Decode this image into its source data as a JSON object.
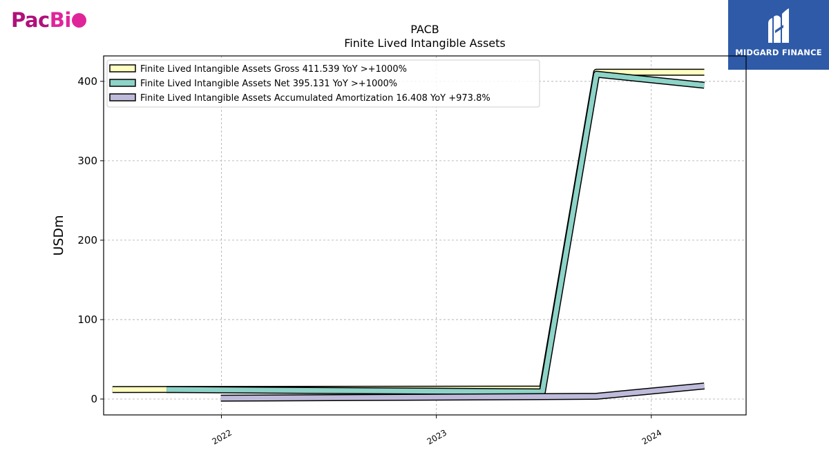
{
  "branding": {
    "left_logo_text_a": "Pac",
    "left_logo_text_b": "Bi",
    "right_logo_text": "MIDGARD FINANCE",
    "colors": {
      "pacbio_dark": "#b0117a",
      "pacbio_light": "#e0249a",
      "midgard_bg": "#2e5aa8"
    }
  },
  "chart_data": {
    "type": "line",
    "title": "PACB",
    "subtitle": "Finite Lived Intangible Assets",
    "ylabel": "USDm",
    "xlabel": "",
    "x_range": [
      "2021-06-15",
      "2024-06-10"
    ],
    "ylim": [
      -20,
      432
    ],
    "yticks": [
      0,
      100,
      200,
      300,
      400
    ],
    "xticks": [
      "2022",
      "2023",
      "2024"
    ],
    "grid": true,
    "legend_placement": "top-left",
    "series": [
      {
        "name": "Finite Lived Intangible Assets Gross  411.539 YoY >+1000%",
        "color": "#ffffbf",
        "points": [
          {
            "x": "2021-06-30",
            "y": 12.0
          },
          {
            "x": "2023-06-30",
            "y": 12.5
          },
          {
            "x": "2023-09-30",
            "y": 411.5
          },
          {
            "x": "2024-03-31",
            "y": 411.5
          }
        ]
      },
      {
        "name": "Finite Lived Intangible Assets Net  395.131 YoY >+1000%",
        "color": "#8dd3c7",
        "points": [
          {
            "x": "2021-09-30",
            "y": 12.0
          },
          {
            "x": "2023-06-30",
            "y": 9.0
          },
          {
            "x": "2023-09-30",
            "y": 409.0
          },
          {
            "x": "2024-03-31",
            "y": 395.1
          }
        ]
      },
      {
        "name": "Finite Lived Intangible Assets Accumulated Amortization  16.408 YoY +973.8%",
        "color": "#bebada",
        "points": [
          {
            "x": "2021-12-31",
            "y": 1.0
          },
          {
            "x": "2023-06-30",
            "y": 3.0
          },
          {
            "x": "2023-09-30",
            "y": 3.5
          },
          {
            "x": "2024-03-31",
            "y": 16.4
          }
        ]
      }
    ]
  }
}
